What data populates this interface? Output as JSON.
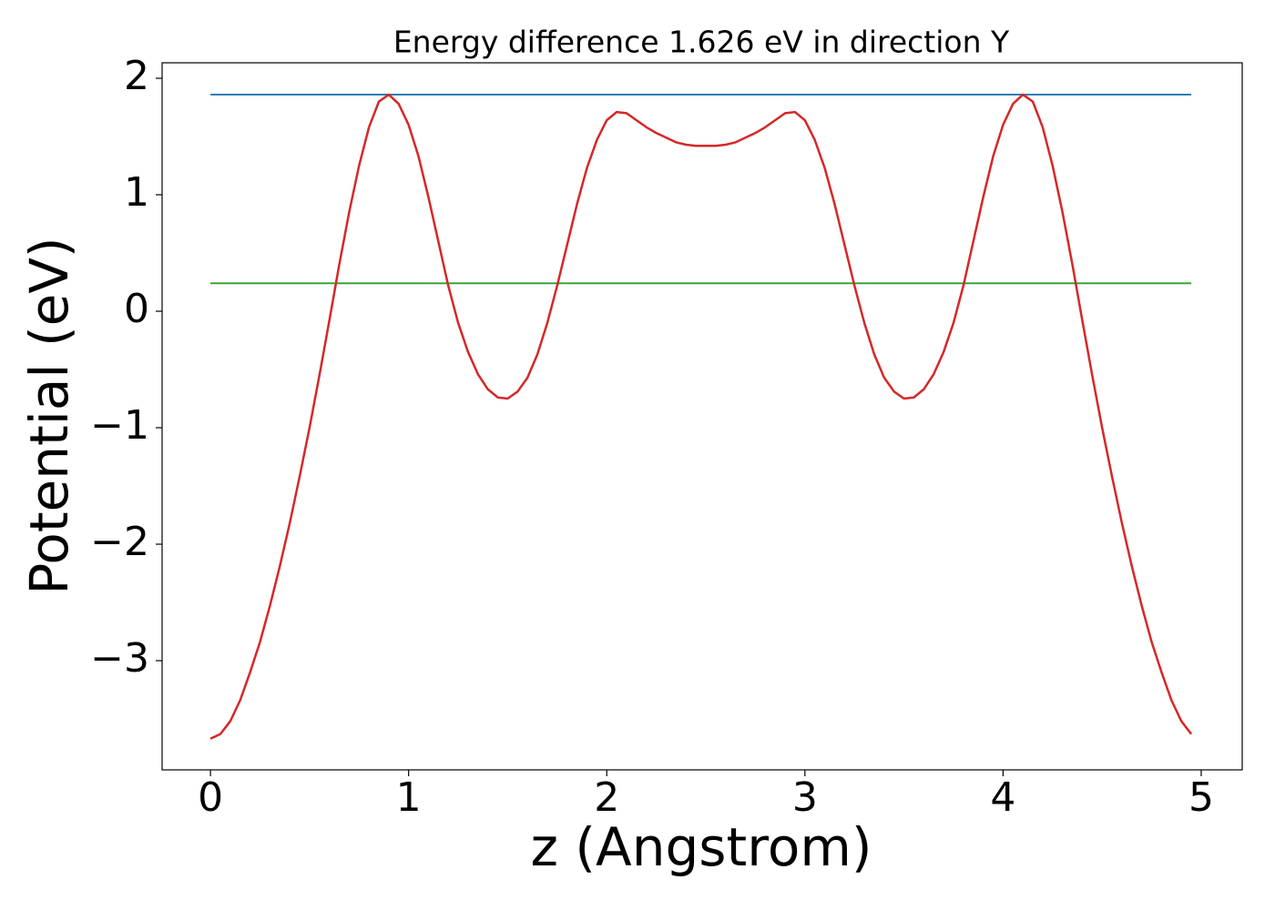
{
  "chart_data": {
    "type": "line",
    "title": "Energy difference 1.626 eV in direction Y",
    "x_label": "z (Angstrom)",
    "y_label": "Potential (eV)",
    "xlim": [
      -0.244,
      5.207
    ],
    "ylim": [
      -3.9375,
      2.133
    ],
    "xticks": [
      0,
      1,
      2,
      3,
      4,
      5
    ],
    "yticks": [
      {
        "value": -3,
        "label": "−3"
      },
      {
        "value": -2,
        "label": "−2"
      },
      {
        "value": -1,
        "label": "−1"
      },
      0,
      1,
      2
    ],
    "grid": false,
    "series": [
      {
        "color": "#d62728",
        "x": [
          0,
          0.05,
          0.1,
          0.15,
          0.2,
          0.25,
          0.3,
          0.35,
          0.4,
          0.45,
          0.5,
          0.55,
          0.6,
          0.65,
          0.7,
          0.75,
          0.8,
          0.85,
          0.9,
          0.95,
          1,
          1.05,
          1.1,
          1.15,
          1.2,
          1.25,
          1.3,
          1.35,
          1.4,
          1.45,
          1.5,
          1.55,
          1.6,
          1.65,
          1.7,
          1.75,
          1.8,
          1.85,
          1.9,
          1.95,
          2,
          2.05,
          2.1,
          2.15,
          2.2,
          2.25,
          2.3,
          2.35,
          2.4,
          2.45,
          2.5,
          2.55,
          2.6,
          2.65,
          2.7,
          2.75,
          2.8,
          2.85,
          2.9,
          2.95,
          3,
          3.05,
          3.1,
          3.15,
          3.2,
          3.25,
          3.3,
          3.35,
          3.4,
          3.45,
          3.5,
          3.55,
          3.6,
          3.65,
          3.7,
          3.75,
          3.8,
          3.85,
          3.9,
          3.95,
          4,
          4.05,
          4.1,
          4.15,
          4.2,
          4.25,
          4.3,
          4.35,
          4.4,
          4.45,
          4.5,
          4.55,
          4.6,
          4.65,
          4.7,
          4.75,
          4.8,
          4.85,
          4.9,
          4.95
        ],
        "values": [
          -3.67,
          -3.63,
          -3.52,
          -3.34,
          -3.1,
          -2.84,
          -2.53,
          -2.19,
          -1.82,
          -1.42,
          -1.0,
          -0.55,
          -0.08,
          0.4,
          0.85,
          1.25,
          1.58,
          1.8,
          1.86,
          1.78,
          1.6,
          1.33,
          0.98,
          0.6,
          0.22,
          -0.1,
          -0.35,
          -0.54,
          -0.67,
          -0.74,
          -0.75,
          -0.69,
          -0.57,
          -0.37,
          -0.1,
          0.22,
          0.57,
          0.92,
          1.23,
          1.47,
          1.64,
          1.71,
          1.7,
          1.64,
          1.58,
          1.53,
          1.49,
          1.45,
          1.43,
          1.42,
          1.42,
          1.42,
          1.43,
          1.45,
          1.49,
          1.53,
          1.58,
          1.64,
          1.7,
          1.71,
          1.64,
          1.47,
          1.23,
          0.92,
          0.57,
          0.22,
          -0.1,
          -0.37,
          -0.57,
          -0.69,
          -0.75,
          -0.74,
          -0.67,
          -0.54,
          -0.35,
          -0.1,
          0.22,
          0.6,
          0.98,
          1.33,
          1.6,
          1.78,
          1.86,
          1.8,
          1.58,
          1.25,
          0.85,
          0.4,
          -0.08,
          -0.55,
          -1.0,
          -1.42,
          -1.82,
          -2.19,
          -2.53,
          -2.84,
          -3.1,
          -3.34,
          -3.52,
          -3.63
        ]
      },
      {
        "color": "#1f77b4",
        "x": [
          0,
          4.95
        ],
        "values": [
          1.86,
          1.86
        ]
      },
      {
        "color": "#2ca02c",
        "x": [
          0,
          4.95
        ],
        "values": [
          0.24,
          0.24
        ]
      }
    ]
  }
}
